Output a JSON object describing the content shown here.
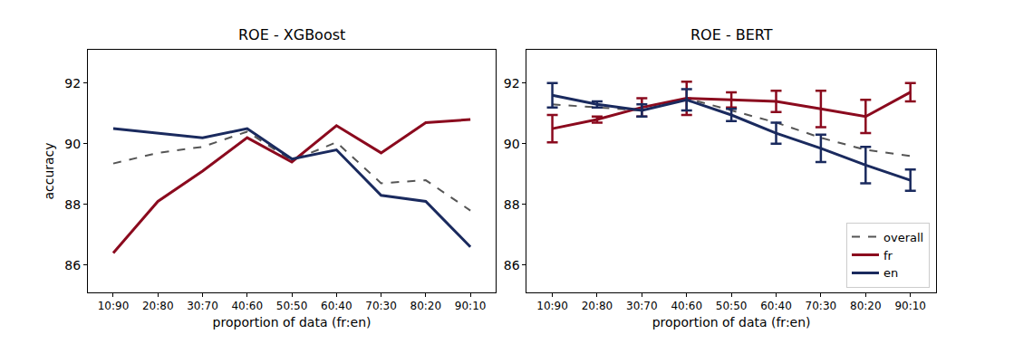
{
  "chart_data": [
    {
      "type": "line",
      "title": "ROE - XGBoost",
      "x_label": "proportion of data (fr:en)",
      "y_label": "accuracy",
      "categories": [
        "10:90",
        "20:80",
        "30:70",
        "40:60",
        "50:50",
        "60:40",
        "70:30",
        "80:20",
        "90:10"
      ],
      "ylim": [
        85.1,
        93.1
      ],
      "yticks": [
        86,
        88,
        90,
        92
      ],
      "grid": false,
      "series": [
        {
          "name": "overall",
          "color": "#555555",
          "line_style": "dashed",
          "values": [
            89.35,
            89.7,
            89.9,
            90.4,
            89.45,
            90.05,
            88.7,
            88.8,
            87.8
          ]
        },
        {
          "name": "fr",
          "color": "#8b0a1e",
          "line_style": "solid",
          "values": [
            86.4,
            88.1,
            89.1,
            90.2,
            89.4,
            90.6,
            89.7,
            90.7,
            90.8
          ]
        },
        {
          "name": "en",
          "color": "#1a2a5e",
          "line_style": "solid",
          "values": [
            90.5,
            90.35,
            90.2,
            90.5,
            89.5,
            89.8,
            88.3,
            88.1,
            86.6
          ]
        }
      ]
    },
    {
      "type": "line",
      "title": "ROE - BERT",
      "x_label": "proportion of data (fr:en)",
      "categories": [
        "10:90",
        "20:80",
        "30:70",
        "40:60",
        "50:50",
        "60:40",
        "70:30",
        "80:20",
        "90:10"
      ],
      "ylim": [
        85.1,
        93.1
      ],
      "yticks": [
        86,
        88,
        90,
        92
      ],
      "grid": false,
      "legend": "lower right",
      "series": [
        {
          "name": "overall",
          "color": "#555555",
          "line_style": "dashed",
          "values": [
            91.3,
            91.2,
            91.1,
            91.5,
            91.1,
            90.7,
            90.2,
            89.8,
            89.6
          ]
        },
        {
          "name": "fr",
          "color": "#8b0a1e",
          "line_style": "solid",
          "values": [
            90.5,
            90.8,
            91.2,
            91.5,
            91.45,
            91.4,
            91.15,
            90.9,
            91.7
          ],
          "errors": [
            0.45,
            0.1,
            0.3,
            0.55,
            0.25,
            0.35,
            0.6,
            0.55,
            0.3
          ]
        },
        {
          "name": "en",
          "color": "#1a2a5e",
          "line_style": "solid",
          "values": [
            91.6,
            91.3,
            91.1,
            91.45,
            90.95,
            90.35,
            89.85,
            89.3,
            88.8
          ],
          "errors": [
            0.4,
            0.1,
            0.2,
            0.35,
            0.2,
            0.35,
            0.45,
            0.6,
            0.35
          ]
        }
      ]
    }
  ]
}
